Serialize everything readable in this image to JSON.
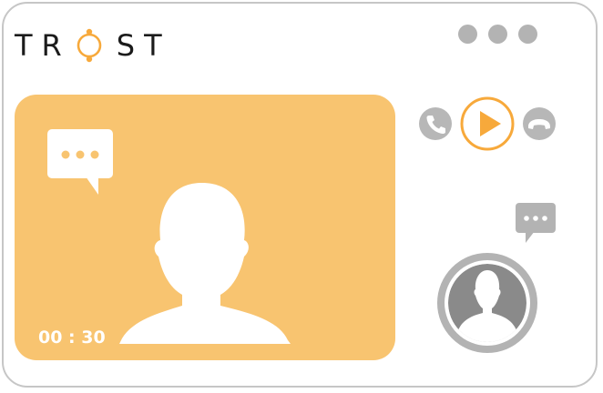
{
  "app": {
    "logo_left": "TR",
    "logo_right": "ST",
    "logo_mark_icon": "ring-logo-icon"
  },
  "window_controls": {
    "icons": [
      "dot-icon",
      "dot-icon",
      "dot-icon"
    ],
    "color": "#b3b3b3"
  },
  "main_video": {
    "timer": "00 : 30",
    "background_color": "#f8c470",
    "chat_bubble_icon": "chat-bubble-icon",
    "participant_icon": "person-silhouette-icon"
  },
  "call_controls": {
    "accept_icon": "phone-icon",
    "play_icon": "play-icon",
    "hangup_icon": "hang-up-icon",
    "accent_color": "#f7a93b",
    "neutral_color": "#b7b7b7"
  },
  "self_view": {
    "avatar_icon": "person-silhouette-icon",
    "chat_icon": "chat-bubble-icon",
    "ring_color": "#b3b3b3",
    "fill_color": "#8a8a8a"
  }
}
